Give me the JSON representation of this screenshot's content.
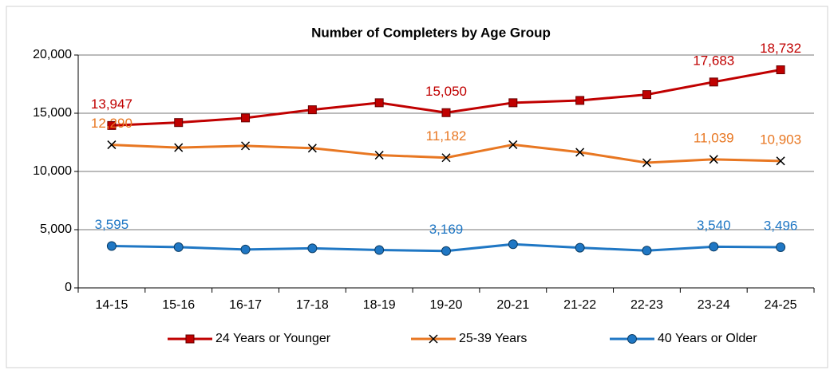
{
  "chart_data": {
    "type": "line",
    "title": "Number of Completers by Age Group",
    "categories": [
      "14-15",
      "15-16",
      "16-17",
      "17-18",
      "18-19",
      "19-20",
      "20-21",
      "21-22",
      "22-23",
      "23-24",
      "24-25"
    ],
    "series": [
      {
        "name": "24 Years or Younger",
        "color": "#c00000",
        "marker": "square",
        "values": [
          13947,
          14200,
          14600,
          15300,
          15900,
          15050,
          15900,
          16100,
          16600,
          17683,
          18732
        ],
        "value_labels": [
          "13,947",
          null,
          null,
          null,
          null,
          "15,050",
          null,
          null,
          null,
          "17,683",
          "18,732"
        ]
      },
      {
        "name": "25-39 Years",
        "color": "#e87722",
        "marker": "x",
        "values": [
          12290,
          12050,
          12200,
          12000,
          11400,
          11182,
          12300,
          11650,
          10750,
          11039,
          10903
        ],
        "value_labels": [
          "12,290",
          null,
          null,
          null,
          null,
          "11,182",
          null,
          null,
          null,
          "11,039",
          "10,903"
        ]
      },
      {
        "name": "40 Years or Older",
        "color": "#1f77c4",
        "marker": "circle",
        "values": [
          3595,
          3500,
          3300,
          3400,
          3250,
          3169,
          3750,
          3450,
          3200,
          3540,
          3496
        ],
        "value_labels": [
          "3,595",
          null,
          null,
          null,
          null,
          "3,169",
          null,
          null,
          null,
          "3,540",
          "3,496"
        ]
      }
    ],
    "ylim": [
      0,
      20000
    ],
    "yticks": [
      0,
      {
        "value": 5000,
        "label": "5,000"
      },
      {
        "value": 10000,
        "label": "10,000"
      },
      {
        "value": 15000,
        "label": "15,000"
      },
      {
        "value": 20000,
        "label": "20,000"
      }
    ],
    "grid": true,
    "legend": "bottom"
  }
}
